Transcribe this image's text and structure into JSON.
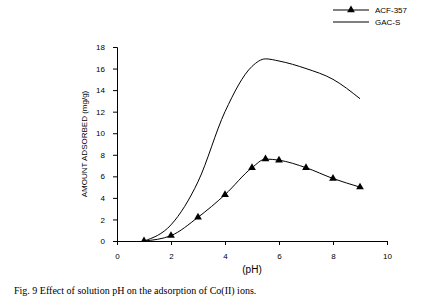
{
  "chart_data": {
    "type": "line",
    "title": "Fig. 9  Effect of solution pH on the adsorption of Co(II) ions.",
    "x_label": "(pH)",
    "y_label": "AMOUNT ADSORBED (mg/g)",
    "x": [
      1,
      2,
      3,
      4,
      5,
      5.5,
      6,
      7,
      8,
      9
    ],
    "series": [
      {
        "name": "ACF-357",
        "color": "#000000",
        "marker": "triangle",
        "line_style": "solid",
        "values": [
          0,
          0.5,
          2.2,
          4.3,
          6.8,
          7.6,
          7.5,
          6.8,
          5.8,
          5.0
        ]
      },
      {
        "name": "GAC-S",
        "color": "#000000",
        "marker": "none",
        "line_style": "solid",
        "values": [
          0,
          1.5,
          5.5,
          12,
          16.2,
          16.9,
          16.7,
          16,
          15,
          13.2
        ]
      }
    ],
    "xlim": [
      0,
      10
    ],
    "xticks": [
      0,
      2,
      4,
      6,
      8,
      10
    ],
    "ylim": [
      0,
      18
    ],
    "yticks": [
      0,
      2,
      4,
      6,
      8,
      10,
      12,
      14,
      16,
      18
    ],
    "grid": false,
    "legend": "upper right"
  }
}
